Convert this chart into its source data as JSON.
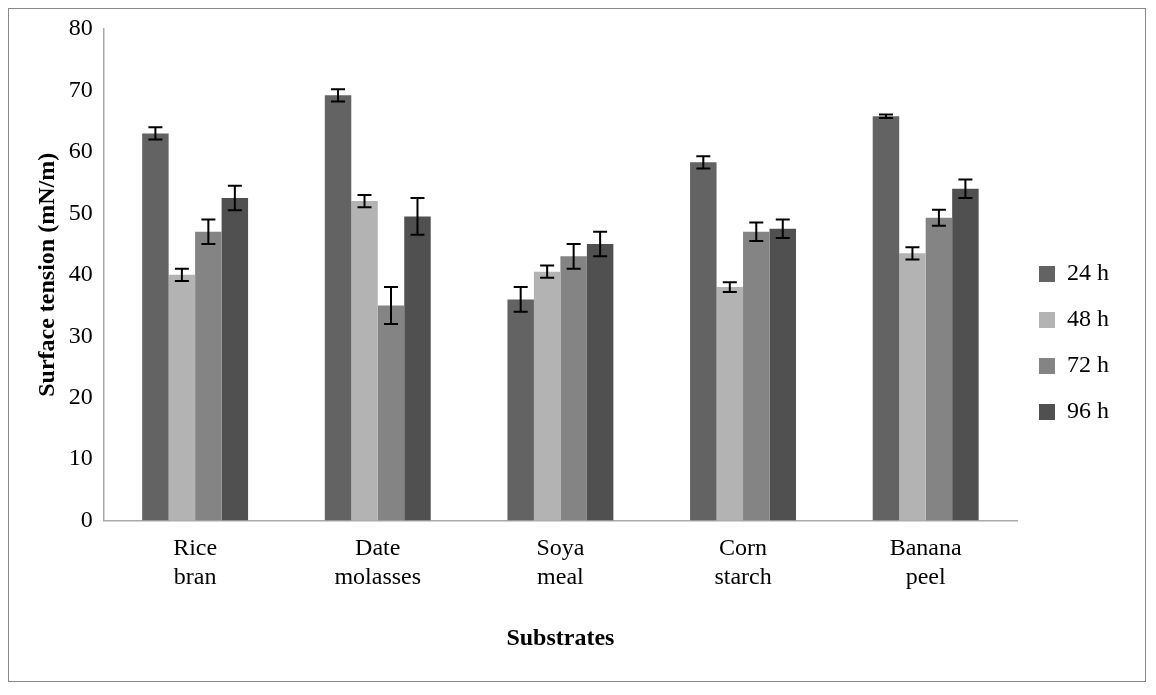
{
  "chart_data": {
    "type": "bar",
    "xlabel": "Substrates",
    "ylabel": "Surface tension (mN/m)",
    "categories": [
      "Rice bran",
      "Date molasses",
      "Soya meal",
      "Corn starch",
      "Banana peel"
    ],
    "series": [
      {
        "name": "24 h",
        "color": "#636363",
        "values": [
          63,
          69.2,
          36,
          58.3,
          65.8
        ],
        "errors": [
          1,
          1,
          2,
          1,
          0.3
        ]
      },
      {
        "name": "48 h",
        "color": "#b3b3b3",
        "values": [
          40,
          52,
          40.5,
          38,
          43.5
        ],
        "errors": [
          1,
          1,
          1,
          0.8,
          1
        ]
      },
      {
        "name": "72 h",
        "color": "#848484",
        "values": [
          47,
          35,
          43,
          47,
          49.3
        ],
        "errors": [
          2,
          3,
          2,
          1.5,
          1.3
        ]
      },
      {
        "name": "96 h",
        "color": "#505050",
        "values": [
          52.5,
          49.5,
          45,
          47.5,
          54
        ],
        "errors": [
          2,
          3,
          2,
          1.5,
          1.5
        ]
      }
    ],
    "ylim": [
      0,
      80
    ],
    "yticks": [
      0,
      10,
      20,
      30,
      40,
      50,
      60,
      70,
      80
    ],
    "grid": false,
    "legend": "right"
  }
}
